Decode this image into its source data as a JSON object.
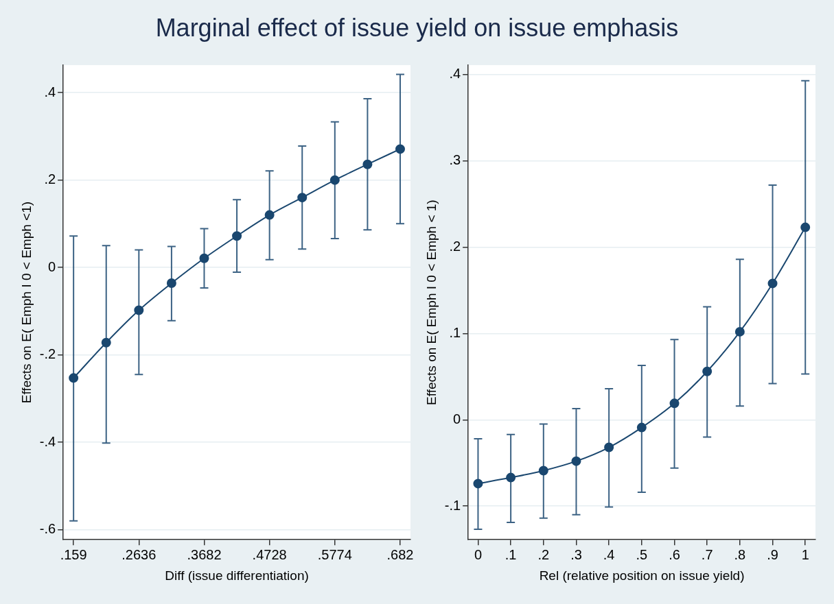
{
  "chart_data": [
    {
      "type": "line",
      "title": "Marginal effect of issue yield on issue emphasis",
      "xlabel": "Diff (issue differentiation)",
      "ylabel": "Effects on E( Emph I 0 < Emph <1)",
      "x": [
        0.159,
        0.2113,
        0.2636,
        0.3159,
        0.3682,
        0.4205,
        0.4728,
        0.5251,
        0.5774,
        0.6297,
        0.682
      ],
      "series": [
        {
          "color": "#1a476f",
          "values": [
            -0.253,
            -0.172,
            -0.098,
            -0.036,
            0.021,
            0.072,
            0.12,
            0.16,
            0.2,
            0.236,
            0.271
          ],
          "errors": [
            [
              -0.58,
              0.072
            ],
            [
              -0.402,
              0.05
            ],
            [
              -0.245,
              0.04
            ],
            [
              -0.122,
              0.048
            ],
            [
              -0.047,
              0.089
            ],
            [
              -0.011,
              0.155
            ],
            [
              0.018,
              0.221
            ],
            [
              0.042,
              0.278
            ],
            [
              0.066,
              0.333
            ],
            [
              0.086,
              0.386
            ],
            [
              0.1,
              0.442
            ]
          ]
        }
      ],
      "xlim": [
        0.1425,
        0.6985
      ],
      "ylim": [
        -0.623,
        0.463
      ],
      "xticks": [
        {
          "value": 0.159,
          "label": ".159"
        },
        {
          "value": 0.2636,
          "label": ".2636"
        },
        {
          "value": 0.3682,
          "label": ".3682"
        },
        {
          "value": 0.4728,
          "label": ".4728"
        },
        {
          "value": 0.5774,
          "label": ".5774"
        },
        {
          "value": 0.682,
          "label": ".682"
        }
      ],
      "yticks": [
        {
          "value": -0.6,
          "label": "-.6"
        },
        {
          "value": -0.4,
          "label": "-.4"
        },
        {
          "value": -0.2,
          "label": "-.2"
        },
        0,
        {
          "value": 0.2,
          "label": ".2"
        },
        {
          "value": 0.4,
          "label": ".4"
        }
      ],
      "grid": "y",
      "marker": "circle",
      "line_style": "solid",
      "legend": false
    },
    {
      "type": "line",
      "xlabel": "Rel (relative position on issue yield)",
      "ylabel": "Effects on E( Emph I 0 < Emph < 1)",
      "x": [
        0,
        0.1,
        0.2,
        0.3,
        0.4,
        0.5,
        0.6,
        0.7,
        0.8,
        0.9,
        1
      ],
      "series": [
        {
          "color": "#1a476f",
          "values": [
            -0.074,
            -0.067,
            -0.059,
            -0.048,
            -0.032,
            -0.009,
            0.019,
            0.056,
            0.102,
            0.158,
            0.223
          ],
          "errors": [
            [
              -0.127,
              -0.022
            ],
            [
              -0.119,
              -0.017
            ],
            [
              -0.114,
              -0.005
            ],
            [
              -0.11,
              0.013
            ],
            [
              -0.101,
              0.036
            ],
            [
              -0.084,
              0.063
            ],
            [
              -0.056,
              0.093
            ],
            [
              -0.02,
              0.131
            ],
            [
              0.016,
              0.186
            ],
            [
              0.042,
              0.272
            ],
            [
              0.053,
              0.393
            ]
          ]
        }
      ],
      "xlim": [
        -0.03,
        1.031
      ],
      "ylim": [
        -0.139,
        0.411
      ],
      "xticks": [
        0,
        {
          "value": 0.1,
          "label": ".1"
        },
        {
          "value": 0.2,
          "label": ".2"
        },
        {
          "value": 0.3,
          "label": ".3"
        },
        {
          "value": 0.4,
          "label": ".4"
        },
        {
          "value": 0.5,
          "label": ".5"
        },
        {
          "value": 0.6,
          "label": ".6"
        },
        {
          "value": 0.7,
          "label": ".7"
        },
        {
          "value": 0.8,
          "label": ".8"
        },
        {
          "value": 0.9,
          "label": ".9"
        },
        1
      ],
      "yticks": [
        {
          "value": -0.1,
          "label": "-.1"
        },
        0,
        {
          "value": 0.1,
          "label": ".1"
        },
        {
          "value": 0.2,
          "label": ".2"
        },
        {
          "value": 0.3,
          "label": ".3"
        },
        {
          "value": 0.4,
          "label": ".4"
        }
      ],
      "grid": "y",
      "marker": "circle",
      "line_style": "solid",
      "legend": false
    }
  ]
}
